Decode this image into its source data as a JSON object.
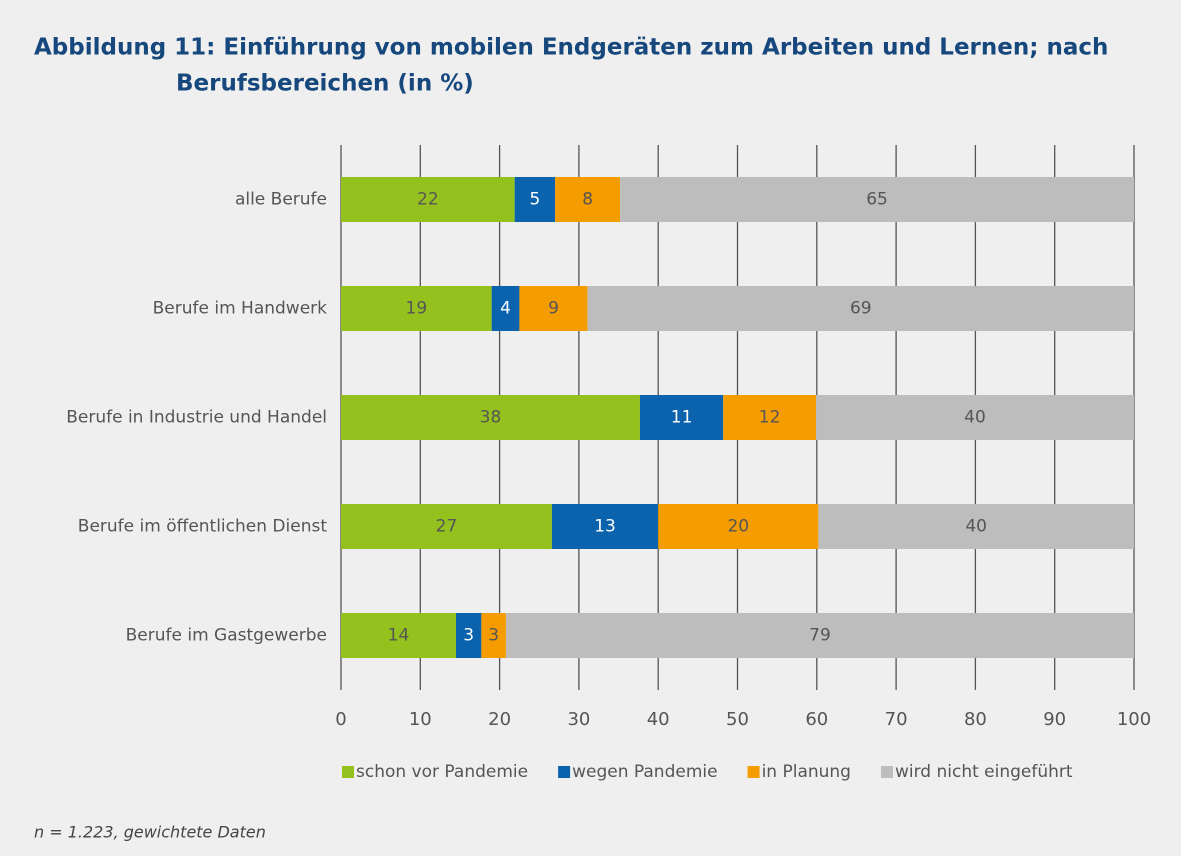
{
  "chart_data": {
    "type": "stacked-bar-horizontal",
    "title_lines": [
      "Abbildung 11: Einführung von mobilen Endgeräten zum Arbeiten und Lernen; nach",
      "Berufsbereichen (in %)"
    ],
    "categories": [
      "alle Berufe",
      "Berufe im Handwerk",
      "Berufe in Industrie und Handel",
      "Berufe im öffentlichen Dienst",
      "Berufe im Gastgewerbe"
    ],
    "series": [
      {
        "name": "schon vor Pandemie",
        "color": "#95c11f",
        "values": [
          21.9,
          19.0,
          37.7,
          26.6,
          14.5
        ],
        "value_labels": [
          "22",
          "19",
          "38",
          "27",
          "14"
        ]
      },
      {
        "name": "wegen Pandemie",
        "color": "#0b63ae",
        "values": [
          5.1,
          3.5,
          10.5,
          13.4,
          3.2
        ],
        "value_labels": [
          "5",
          "4",
          "11",
          "13",
          "3"
        ]
      },
      {
        "name": "in Planung",
        "color": "#f59c00",
        "values": [
          8.2,
          8.6,
          11.7,
          20.2,
          3.1
        ],
        "value_labels": [
          "8",
          "9",
          "12",
          "20",
          "3"
        ]
      },
      {
        "name": "wird nicht eingeführt",
        "color": "#bdbdbd",
        "values": [
          64.8,
          68.9,
          40.1,
          39.8,
          79.2
        ],
        "value_labels": [
          "65",
          "69",
          "40",
          "40",
          "79"
        ]
      }
    ],
    "xlim": [
      0,
      100
    ],
    "xticks": [
      0,
      10,
      20,
      30,
      40,
      50,
      60,
      70,
      80,
      90,
      100
    ],
    "grid": true,
    "legend": "bottom",
    "note": "n = 1.223, gewichtete Daten"
  }
}
